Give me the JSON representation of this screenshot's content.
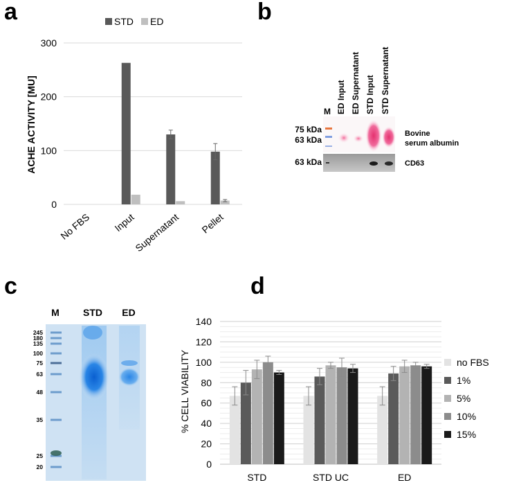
{
  "panels": {
    "a": "a",
    "b": "b",
    "c": "c",
    "d": "d"
  },
  "colors": {
    "dark": "#595959",
    "light": "#bfbfbf",
    "nofbs": "#e3e3e3",
    "p1": "#5a5a5a",
    "p5": "#b3b3b3",
    "p10": "#8c8c8c",
    "p15": "#1a1a1a",
    "gel_bg": "#cfe2f3",
    "gel_stain": "#1f7fe0",
    "blot_pink": "#ee4f8a"
  },
  "chart_data": [
    {
      "id": "a",
      "type": "bar",
      "ylabel": "ACHE ACTIVITY [MU]",
      "xlabel": "",
      "ylim": [
        0,
        300
      ],
      "yticks": [
        0,
        100,
        200,
        300
      ],
      "grid": true,
      "legend_position": "top",
      "categories": [
        "No FBS",
        "Input",
        "Supernatant",
        "Pellet"
      ],
      "series": [
        {
          "name": "STD",
          "values": [
            0,
            263,
            130,
            98
          ],
          "errors": [
            0,
            0,
            8,
            15
          ]
        },
        {
          "name": "ED",
          "values": [
            0,
            18,
            6,
            7
          ],
          "errors": [
            0,
            0,
            0,
            2
          ]
        }
      ]
    },
    {
      "id": "d",
      "type": "bar",
      "ylabel": "% CELL VIABILITY",
      "xlabel": "",
      "ylim": [
        0,
        140
      ],
      "yticks": [
        0,
        20,
        40,
        60,
        80,
        100,
        120,
        140
      ],
      "grid": true,
      "legend_position": "right",
      "categories": [
        "STD",
        "STD UC",
        "ED"
      ],
      "series": [
        {
          "name": "no FBS",
          "values": [
            67,
            67,
            67
          ],
          "errors": [
            9,
            9,
            9
          ]
        },
        {
          "name": "1%",
          "values": [
            80,
            86,
            89
          ],
          "errors": [
            12,
            8,
            7
          ]
        },
        {
          "name": "5%",
          "values": [
            93,
            97,
            96
          ],
          "errors": [
            9,
            3,
            6
          ]
        },
        {
          "name": "10%",
          "values": [
            100,
            95,
            97
          ],
          "errors": [
            6,
            9,
            3
          ]
        },
        {
          "name": "15%",
          "values": [
            90,
            94,
            96
          ],
          "errors": [
            2,
            4,
            2
          ]
        }
      ]
    }
  ],
  "blot": {
    "lanes": [
      "M",
      "ED Input",
      "ED Supernatant",
      "STD Input",
      "STD Supernatant"
    ],
    "markers": [
      "75 kDa",
      "63 kDa",
      "63 kDa"
    ],
    "labels": {
      "bsa_line1": "Bovine",
      "bsa_line2": "serum albumin",
      "cd63": "CD63"
    }
  },
  "gel": {
    "lanes": [
      "M",
      "STD",
      "ED"
    ],
    "markers": [
      "245",
      "180",
      "135",
      "100",
      "75",
      "63",
      "48",
      "35",
      "25",
      "20"
    ]
  }
}
